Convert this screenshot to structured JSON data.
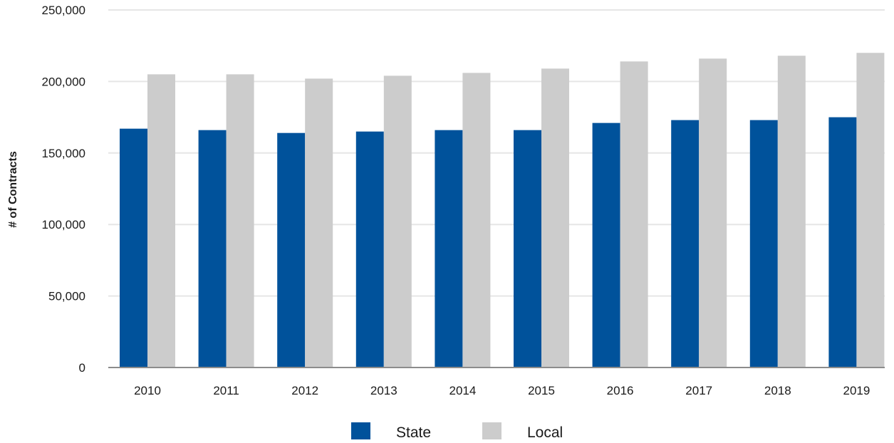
{
  "chart_data": {
    "type": "bar",
    "title": "",
    "xlabel": "",
    "ylabel": "# of Contracts",
    "categories": [
      "2010",
      "2011",
      "2012",
      "2013",
      "2014",
      "2015",
      "2016",
      "2017",
      "2018",
      "2019"
    ],
    "series": [
      {
        "name": "State",
        "color": "#00529b",
        "values": [
          167000,
          166000,
          164000,
          165000,
          166000,
          166000,
          171000,
          173000,
          173000,
          175000
        ]
      },
      {
        "name": "Local",
        "color": "#cccccc",
        "values": [
          205000,
          205000,
          202000,
          204000,
          206000,
          209000,
          214000,
          216000,
          218000,
          220000
        ]
      }
    ],
    "ylim": [
      0,
      250000
    ],
    "yticks": [
      0,
      50000,
      100000,
      150000,
      200000,
      250000
    ],
    "ytick_labels": [
      "0",
      "50,000",
      "100,000",
      "150,000",
      "200,000",
      "250,000"
    ],
    "grid": true,
    "legend_position": "bottom-center"
  }
}
